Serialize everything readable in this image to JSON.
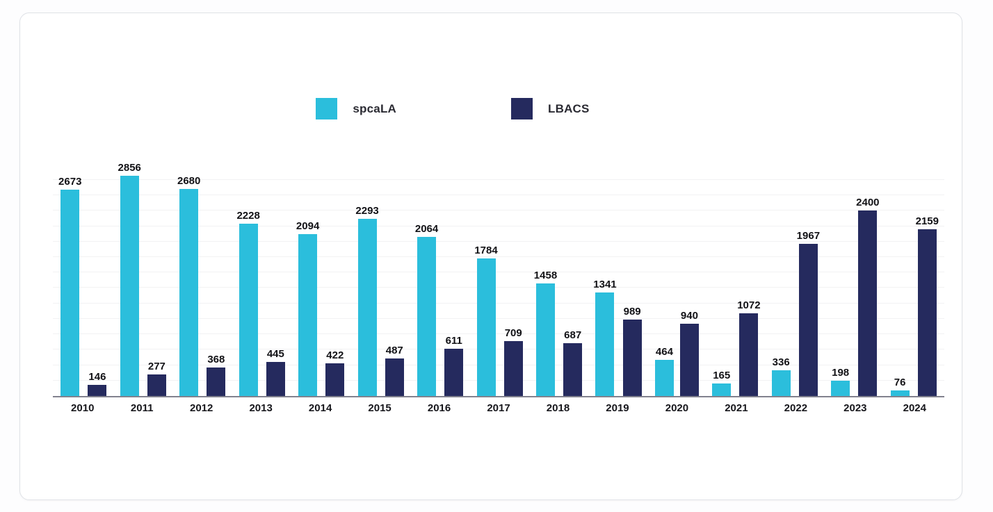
{
  "chart_data": {
    "type": "bar",
    "title": "",
    "xlabel": "",
    "ylabel": "",
    "categories": [
      "2010",
      "2011",
      "2012",
      "2013",
      "2014",
      "2015",
      "2016",
      "2017",
      "2018",
      "2019",
      "2020",
      "2021",
      "2022",
      "2023",
      "2024"
    ],
    "series": [
      {
        "name": "spcaLA",
        "color": "#2bbedc",
        "values": [
          2673,
          2856,
          2680,
          2228,
          2094,
          2293,
          2064,
          1784,
          1458,
          1341,
          464,
          165,
          336,
          198,
          76
        ]
      },
      {
        "name": "LBACS",
        "color": "#252a5e",
        "values": [
          146,
          277,
          368,
          445,
          422,
          487,
          611,
          709,
          687,
          989,
          940,
          1072,
          1967,
          2400,
          2159
        ]
      }
    ],
    "ylim": [
      0,
      3000
    ],
    "gridline_step": 200,
    "grid": "faint-horizontal",
    "legend_position": "top-center",
    "value_labels": true,
    "colors": {
      "axis_line": "#82828e",
      "gridline": "#f2f2f3",
      "label_text": "#121216",
      "card_background": "#ffffff",
      "card_border": "#dfe2e7"
    }
  }
}
